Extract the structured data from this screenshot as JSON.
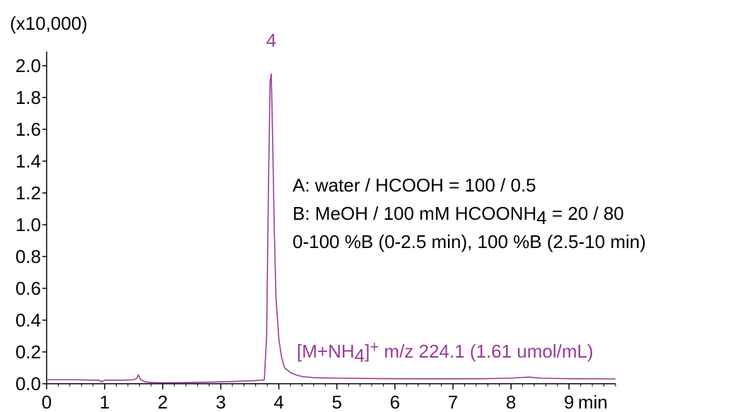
{
  "chart_data": {
    "type": "line",
    "y_multiplier_label": "(x10,000)",
    "xlabel": "min",
    "xlim": [
      0,
      9.8
    ],
    "ylim": [
      0,
      2.0
    ],
    "x_ticks": [
      {
        "value": 0,
        "label": "0"
      },
      {
        "value": 1,
        "label": "1"
      },
      {
        "value": 2,
        "label": "2"
      },
      {
        "value": 3,
        "label": "3"
      },
      {
        "value": 4,
        "label": "4"
      },
      {
        "value": 5,
        "label": "5"
      },
      {
        "value": 6,
        "label": "6"
      },
      {
        "value": 7,
        "label": "7"
      },
      {
        "value": 8,
        "label": "8"
      },
      {
        "value": 9,
        "label": "9"
      }
    ],
    "y_ticks": [
      {
        "value": 0.0,
        "label": "0.0"
      },
      {
        "value": 0.2,
        "label": "0.2"
      },
      {
        "value": 0.4,
        "label": "0.4"
      },
      {
        "value": 0.6,
        "label": "0.6"
      },
      {
        "value": 0.8,
        "label": "0.8"
      },
      {
        "value": 1.0,
        "label": "1.0"
      },
      {
        "value": 1.2,
        "label": "1.2"
      },
      {
        "value": 1.4,
        "label": "1.4"
      },
      {
        "value": 1.6,
        "label": "1.6"
      },
      {
        "value": 1.8,
        "label": "1.8"
      },
      {
        "value": 2.0,
        "label": "2.0"
      }
    ],
    "series": [
      {
        "color": "#9a3a9a",
        "x": [
          0,
          0.5,
          0.9,
          0.95,
          1.0,
          1.3,
          1.5,
          1.55,
          1.58,
          1.62,
          1.7,
          1.8,
          2.0,
          2.5,
          3.0,
          3.5,
          3.7,
          3.75,
          3.79,
          3.82,
          3.85,
          3.87,
          3.89,
          3.92,
          3.95,
          4.0,
          4.05,
          4.1,
          4.2,
          4.3,
          4.4,
          4.6,
          5.0,
          5.5,
          6.0,
          6.5,
          7.0,
          7.5,
          8.0,
          8.3,
          8.5,
          9.0,
          9.8
        ],
        "y": [
          0.025,
          0.025,
          0.022,
          0.012,
          0.022,
          0.022,
          0.025,
          0.032,
          0.055,
          0.025,
          0.012,
          0.008,
          0.006,
          0.008,
          0.012,
          0.018,
          0.022,
          0.025,
          0.3,
          1.2,
          1.9,
          1.95,
          1.6,
          1.0,
          0.55,
          0.28,
          0.16,
          0.1,
          0.07,
          0.055,
          0.045,
          0.038,
          0.035,
          0.033,
          0.032,
          0.031,
          0.031,
          0.032,
          0.035,
          0.042,
          0.035,
          0.032,
          0.03
        ]
      }
    ],
    "annotations": {
      "peak_label": "4",
      "peak_x": 3.87,
      "ion_label_prefix": "[M+NH",
      "ion_label_sub": "4",
      "ion_label_bracket": "]",
      "ion_label_sup": "+",
      "ion_label_rest": " m/z 224.1 (1.61 umol/mL)",
      "conditions_line1": "A: water / HCOOH = 100 / 0.5",
      "conditions_line2_prefix": "B: MeOH / 100 mM HCOONH",
      "conditions_line2_sub": "4",
      "conditions_line2_suffix": " = 20 / 80",
      "conditions_line3": "0-100 %B (0-2.5 min), 100 %B (2.5-10 min)"
    }
  }
}
